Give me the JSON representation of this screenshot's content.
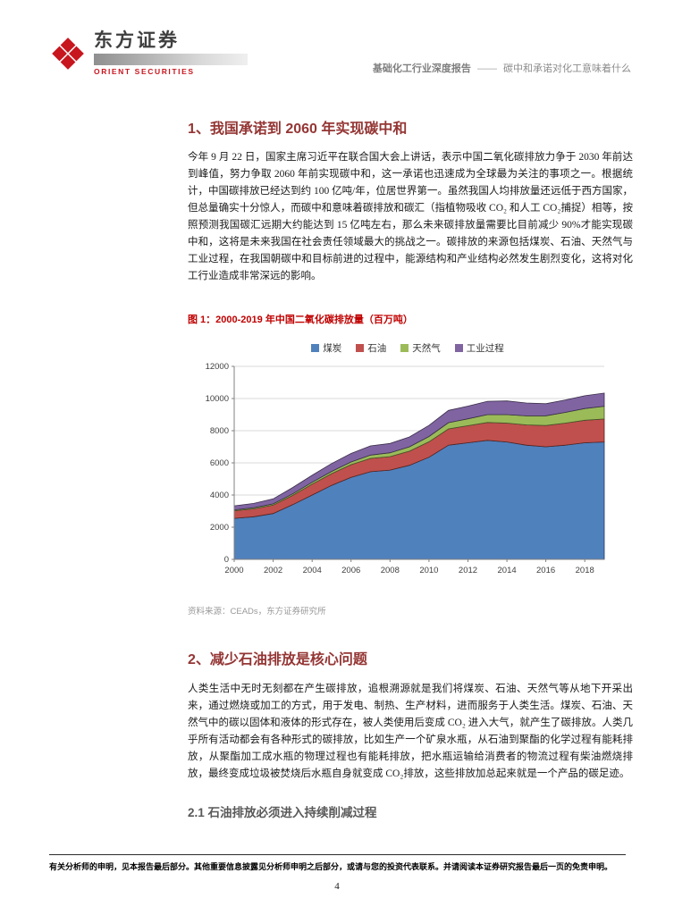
{
  "header": {
    "brand_cn": "东方证券",
    "brand_en": "ORIENT SECURITIES",
    "report_type": "基础化工行业深度报告",
    "separator": "——",
    "report_title": "碳中和承诺对化工意味着什么"
  },
  "sections": {
    "s1": {
      "title": "1、我国承诺到 2060 年实现碳中和",
      "body": "今年 9 月 22 日，国家主席习近平在联合国大会上讲话，表示中国二氧化碳排放力争于 2030 年前达到峰值，努力争取 2060 年前实现碳中和，这一承诺也迅速成为全球最为关注的事项之一。根据统计，中国碳排放已经达到约 100 亿吨/年，位居世界第一。虽然我国人均排放量还远低于西方国家，但总量确实十分惊人，而碳中和意味着碳排放和碳汇（指植物吸收 CO₂ 和人工 CO₂捕捉）相等，按照预测我国碳汇远期大约能达到 15 亿吨左右，那么未来碳排放量需要比目前减少 90%才能实现碳中和，这将是未来我国在社会责任领域最大的挑战之一。碳排放的来源包括煤炭、石油、天然气与工业过程，在我国朝碳中和目标前进的过程中，能源结构和产业结构必然发生剧烈变化，这将对化工行业造成非常深远的影响。"
    },
    "s2": {
      "title": "2、减少石油排放是核心问题",
      "body": "人类生活中无时无刻都在产生碳排放，追根溯源就是我们将煤炭、石油、天然气等从地下开采出来，通过燃烧或加工的方式，用于发电、制热、生产材料，进而服务于人类生活。煤炭、石油、天然气中的碳以固体和液体的形式存在，被人类使用后变成 CO₂ 进入大气，就产生了碳排放。人类几乎所有活动都会有各种形式的碳排放，比如生产一个矿泉水瓶，从石油到聚酯的化学过程有能耗排放，从聚酯加工成水瓶的物理过程也有能耗排放，把水瓶运输给消费者的物流过程有柴油燃烧排放，最终变成垃圾被焚烧后水瓶自身就变成 CO₂排放，这些排放加总起来就是一个产品的碳足迹。"
    },
    "s2_1": {
      "title": "2.1 石油排放必须进入持续削减过程"
    }
  },
  "figure1": {
    "caption": "图 1：2000-2019 年中国二氧化碳排放量（百万吨）",
    "source": "资料来源：CEADs，东方证券研究所"
  },
  "footer": {
    "disclaimer": "有关分析师的申明，见本报告最后部分。其他重要信息披露见分析师申明之后部分，或请与您的投资代表联系。并请阅读本证券研究报告最后一页的免责申明。",
    "page_number": "4"
  },
  "chart_data": {
    "type": "area",
    "stacked": true,
    "title": "2000-2019 年中国二氧化碳排放量（百万吨）",
    "x": [
      2000,
      2001,
      2002,
      2003,
      2004,
      2005,
      2006,
      2007,
      2008,
      2009,
      2010,
      2011,
      2012,
      2013,
      2014,
      2015,
      2016,
      2017,
      2018,
      2019
    ],
    "xticks": [
      2000,
      2002,
      2004,
      2006,
      2008,
      2010,
      2012,
      2014,
      2016,
      2018
    ],
    "ylim": [
      0,
      12000
    ],
    "ytick_step": 2000,
    "grid": true,
    "legend_position": "top",
    "series": [
      {
        "name": "煤炭",
        "color": "#4F81BD",
        "values": [
          2550,
          2650,
          2850,
          3400,
          4000,
          4600,
          5100,
          5450,
          5550,
          5850,
          6350,
          7100,
          7250,
          7400,
          7300,
          7100,
          7000,
          7100,
          7250,
          7300
        ]
      },
      {
        "name": "石油",
        "color": "#C0504D",
        "values": [
          470,
          490,
          520,
          580,
          680,
          730,
          790,
          830,
          840,
          880,
          960,
          1010,
          1060,
          1110,
          1170,
          1260,
          1320,
          1370,
          1400,
          1430
        ]
      },
      {
        "name": "天然气",
        "color": "#9BBB59",
        "values": [
          60,
          70,
          80,
          95,
          115,
          135,
          165,
          205,
          235,
          270,
          330,
          390,
          430,
          490,
          530,
          560,
          610,
          670,
          730,
          790
        ]
      },
      {
        "name": "工业过程",
        "color": "#8064A2",
        "values": [
          250,
          270,
          310,
          390,
          430,
          490,
          530,
          570,
          580,
          610,
          690,
          760,
          790,
          830,
          850,
          800,
          750,
          770,
          790,
          820
        ]
      }
    ]
  }
}
